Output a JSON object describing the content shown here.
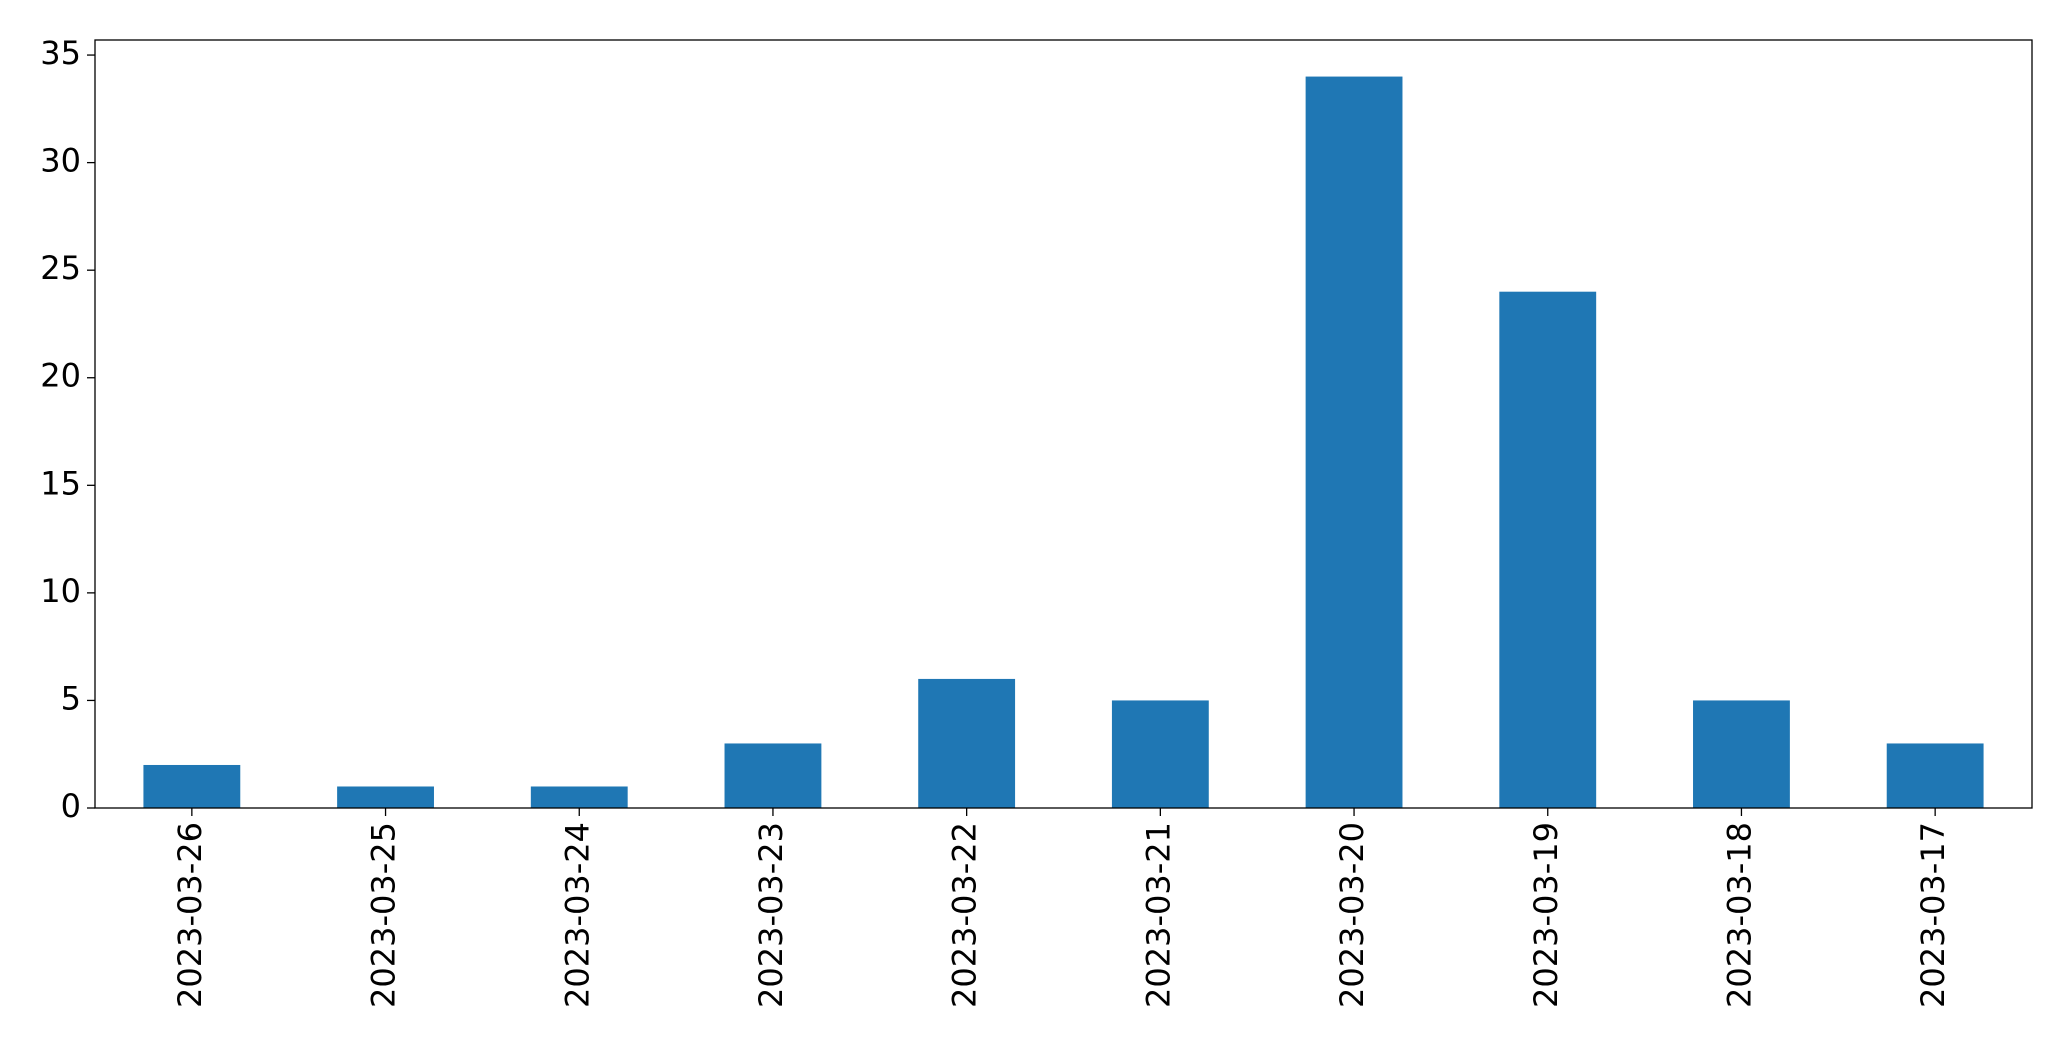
{
  "chart_data": {
    "type": "bar",
    "categories": [
      "2023-03-26",
      "2023-03-25",
      "2023-03-24",
      "2023-03-23",
      "2023-03-22",
      "2023-03-21",
      "2023-03-20",
      "2023-03-19",
      "2023-03-18",
      "2023-03-17"
    ],
    "values": [
      2,
      1,
      1,
      3,
      6,
      5,
      34,
      24,
      5,
      3
    ],
    "color": "#1f77b4",
    "ylim": [
      0,
      35.7
    ],
    "yticks": [
      0,
      5,
      10,
      15,
      20,
      25,
      30,
      35
    ],
    "grid": false
  }
}
